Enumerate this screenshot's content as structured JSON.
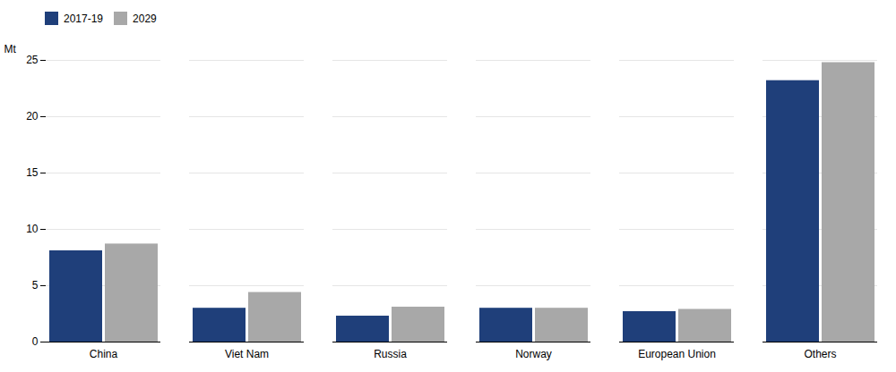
{
  "chart_data": {
    "type": "bar",
    "categories": [
      "China",
      "Viet Nam",
      "Russia",
      "Norway",
      "European Union",
      "Others"
    ],
    "series": [
      {
        "name": "2017-19",
        "color": "#1f3f7a",
        "values": [
          8.1,
          3.0,
          2.3,
          3.0,
          2.7,
          23.2
        ]
      },
      {
        "name": "2029",
        "color": "#a8a8a8",
        "values": [
          8.7,
          4.4,
          3.1,
          3.0,
          2.9,
          24.8
        ]
      }
    ],
    "ylabel": "Mt",
    "ylim": [
      0,
      25
    ],
    "yticks": [
      0,
      5,
      10,
      15,
      20,
      25
    ],
    "grid": true,
    "legend": "top"
  }
}
